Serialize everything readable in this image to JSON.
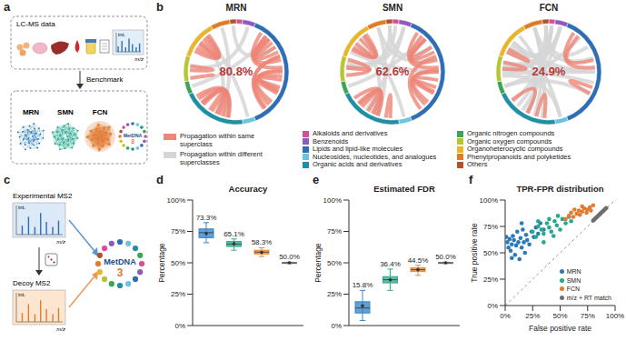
{
  "figure": {
    "a": {
      "label": "a",
      "box_title": "LC-MS data",
      "spectrum": {
        "y": "int.",
        "x": "m/z"
      },
      "arrow_label": "Benchmark",
      "networks": [
        "MRN",
        "SMN",
        "FCN"
      ],
      "network_colors": [
        "#2a7ab8",
        "#27a88a",
        "#e07b31"
      ],
      "logo": [
        "MetDNA",
        "3"
      ]
    },
    "b": {
      "label": "b",
      "diagrams": [
        {
          "title": "MRN",
          "same_superclass": 80.8,
          "value_label": "80.8%"
        },
        {
          "title": "SMN",
          "same_superclass": 62.6,
          "value_label": "62.6%"
        },
        {
          "title": "FCN",
          "same_superclass": 24.9,
          "value_label": "24.9%"
        }
      ],
      "propagation_legend": [
        {
          "name": "Propagation within same superclass",
          "color": "#ee8577"
        },
        {
          "name": "Propagation within different superclasses",
          "color": "#d6d6d6"
        }
      ],
      "superclasses": [
        {
          "name": "Alkaloids and derivatives",
          "color": "#d64f96",
          "share": 2
        },
        {
          "name": "Benzenoids",
          "color": "#8e5cb8",
          "share": 4
        },
        {
          "name": "Lipids and lipid-like molecules",
          "color": "#2f6db5",
          "share": 38
        },
        {
          "name": "Nucleosides, nucleotides, and analogues",
          "color": "#6cc3e0",
          "share": 4
        },
        {
          "name": "Organic acids and derivatives",
          "color": "#1f8fa3",
          "share": 20
        },
        {
          "name": "Organic nitrogen compounds",
          "color": "#3aa655",
          "share": 4
        },
        {
          "name": "Organic oxygen compounds",
          "color": "#b7c534",
          "share": 8
        },
        {
          "name": "Organoheterocyclic compounds",
          "color": "#e9b52c",
          "share": 12
        },
        {
          "name": "Phenylpropanoids and polyketides",
          "color": "#e07b2a",
          "share": 6
        },
        {
          "name": "Others",
          "color": "#b0522a",
          "share": 2
        }
      ]
    },
    "c": {
      "label": "c",
      "experimental": "Experimental MS2",
      "decoy": "Decoy MS2",
      "spectrum": {
        "y": "int.",
        "x": "m/z"
      },
      "logo": [
        "MetDNA",
        "3"
      ]
    }
  },
  "chart_data": [
    {
      "type": "box",
      "panel_label": "d",
      "title": "Accuracy",
      "ylabel": "Percentage",
      "categories": [
        null,
        null,
        null,
        null
      ],
      "values": [
        73.3,
        65.1,
        58.3,
        50.0
      ],
      "value_labels": [
        "73.3%",
        "65.1%",
        "58.3%",
        "50.0%"
      ],
      "box": [
        {
          "min": 66,
          "q1": 70,
          "median": 74,
          "q3": 77,
          "max": 82
        },
        {
          "min": 60,
          "q1": 63,
          "median": 65,
          "q3": 67,
          "max": 69
        },
        {
          "min": 55,
          "q1": 57,
          "median": 58.5,
          "q3": 60,
          "max": 62
        },
        {
          "min": 49.5,
          "q1": 49.8,
          "median": 50,
          "q3": 50.2,
          "max": 50.5
        }
      ],
      "colors": [
        "#3b87c8",
        "#2fae8e",
        "#e68a3c",
        "#8c8c8c"
      ],
      "ylim": [
        0,
        100
      ],
      "yticks": [
        {
          "value": 0,
          "label": "0%"
        },
        {
          "value": 25,
          "label": "25%"
        },
        {
          "value": 50,
          "label": "50%"
        },
        {
          "value": 75,
          "label": "75%"
        },
        {
          "value": 100,
          "label": "100%"
        }
      ],
      "data_labels": true,
      "tick_labels": "y",
      "grid": false
    },
    {
      "type": "box",
      "panel_label": "e",
      "title": "Estimated FDR",
      "ylabel": "Percentage",
      "categories": [
        null,
        null,
        null,
        null
      ],
      "values": [
        15.8,
        36.4,
        44.5,
        50.0
      ],
      "value_labels": [
        "15.8%",
        "36.4%",
        "44.5%",
        "50.0%"
      ],
      "box": [
        {
          "min": 4,
          "q1": 10,
          "median": 14,
          "q3": 19,
          "max": 28
        },
        {
          "min": 28,
          "q1": 34,
          "median": 36.5,
          "q3": 39,
          "max": 45
        },
        {
          "min": 40,
          "q1": 43,
          "median": 44.5,
          "q3": 46,
          "max": 48
        },
        {
          "min": 49.5,
          "q1": 49.8,
          "median": 50,
          "q3": 50.2,
          "max": 50.5
        }
      ],
      "colors": [
        "#3b87c8",
        "#2fae8e",
        "#e68a3c",
        "#8c8c8c"
      ],
      "ylim": [
        0,
        100
      ],
      "yticks": [
        {
          "value": 0,
          "label": "0%"
        },
        {
          "value": 25,
          "label": "25%"
        },
        {
          "value": 50,
          "label": "50%"
        },
        {
          "value": 75,
          "label": "75%"
        },
        {
          "value": 100,
          "label": "100%"
        }
      ],
      "data_labels": true,
      "tick_labels": "y",
      "grid": false
    },
    {
      "type": "scatter",
      "panel_label": "f",
      "title": "TPR-FPR distribution",
      "xlabel": "False positive rate",
      "ylabel": "True positive rate",
      "xlim": [
        0,
        100
      ],
      "ylim": [
        0,
        100
      ],
      "xticks": [
        {
          "value": 0,
          "label": "0%"
        },
        {
          "value": 25,
          "label": "25%"
        },
        {
          "value": 50,
          "label": "50%"
        },
        {
          "value": 75,
          "label": "75%"
        },
        {
          "value": 100,
          "label": "100%"
        }
      ],
      "yticks": [
        {
          "value": 0,
          "label": "0%"
        },
        {
          "value": 25,
          "label": "25%"
        },
        {
          "value": 50,
          "label": "50%"
        },
        {
          "value": 75,
          "label": "75%"
        },
        {
          "value": 100,
          "label": "100%"
        }
      ],
      "legend": "lower right",
      "grid": false,
      "series": [
        {
          "name": "MRN",
          "color": "#2a7ab8",
          "marker": "circle",
          "x": [
            1,
            2,
            3,
            4,
            5,
            6,
            6,
            7,
            8,
            9,
            10,
            11,
            12,
            13,
            14,
            15,
            15,
            16,
            17,
            18,
            19,
            20,
            22,
            24,
            26,
            28,
            30,
            32,
            35
          ],
          "values": [
            65,
            60,
            55,
            63,
            52,
            45,
            58,
            66,
            62,
            48,
            57,
            70,
            60,
            44,
            64,
            55,
            78,
            72,
            60,
            50,
            67,
            62,
            58,
            70,
            65,
            74,
            68,
            78,
            72
          ]
        },
        {
          "name": "SMN",
          "color": "#27a88a",
          "marker": "circle",
          "x": [
            25,
            28,
            30,
            30,
            33,
            35,
            35,
            38,
            40,
            40,
            42,
            44,
            45,
            47,
            48,
            50,
            52,
            55,
            58,
            60
          ],
          "values": [
            70,
            65,
            75,
            80,
            72,
            68,
            60,
            78,
            74,
            82,
            70,
            66,
            80,
            76,
            85,
            72,
            82,
            78,
            84,
            80
          ]
        },
        {
          "name": "FCN",
          "color": "#e07b31",
          "marker": "circle",
          "x": [
            55,
            58,
            60,
            62,
            63,
            65,
            67,
            68,
            70,
            70,
            72,
            74,
            75,
            77,
            78,
            80
          ],
          "values": [
            82,
            85,
            88,
            84,
            91,
            87,
            90,
            86,
            89,
            94,
            92,
            88,
            91,
            93,
            90,
            95
          ]
        },
        {
          "name": "m/z + RT match",
          "color": "#6e6e6e",
          "marker": "circle",
          "x": [
            80,
            81,
            82,
            83,
            84,
            85,
            86,
            87,
            88,
            89,
            90,
            91,
            92
          ],
          "values": [
            80.5,
            81.5,
            82.5,
            83.5,
            84.5,
            85.5,
            86.5,
            87.5,
            88.5,
            89.5,
            90.5,
            91.5,
            92.5
          ]
        }
      ]
    }
  ]
}
